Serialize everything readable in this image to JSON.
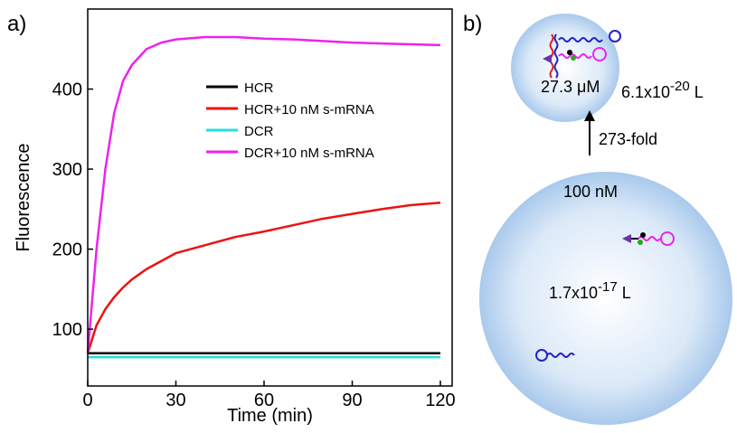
{
  "panel_labels": [
    "a)",
    "b)"
  ],
  "chart_data": {
    "type": "line",
    "xlabel": "Time (min)",
    "ylabel": "Fluorescence",
    "x": [
      0,
      3,
      6,
      9,
      12,
      15,
      20,
      25,
      30,
      40,
      50,
      60,
      70,
      80,
      90,
      100,
      110,
      120
    ],
    "series": [
      {
        "name": "HCR",
        "color": "#000000",
        "values": [
          70,
          70,
          70,
          70,
          70,
          70,
          70,
          70,
          70,
          70,
          70,
          70,
          70,
          70,
          70,
          70,
          70,
          70
        ]
      },
      {
        "name": "HCR+10 nM s-mRNA",
        "color": "#ee1111",
        "values": [
          70,
          105,
          125,
          140,
          152,
          162,
          175,
          185,
          195,
          205,
          215,
          222,
          230,
          238,
          244,
          250,
          255,
          258
        ]
      },
      {
        "name": "DCR",
        "color": "#22e0e0",
        "values": [
          65,
          65,
          65,
          65,
          65,
          65,
          65,
          65,
          65,
          65,
          65,
          65,
          65,
          65,
          65,
          65,
          65,
          65
        ]
      },
      {
        "name": "DCR+10 nM s-mRNA",
        "color": "#ee22ee",
        "values": [
          70,
          200,
          300,
          370,
          410,
          430,
          450,
          458,
          462,
          465,
          465,
          463,
          462,
          460,
          458,
          457,
          456,
          455
        ]
      }
    ],
    "xlim": [
      0,
      124
    ],
    "ylim": [
      29,
      500
    ],
    "xticks": [
      0,
      30,
      60,
      90,
      120
    ],
    "yticks": [
      100,
      200,
      300,
      400
    ]
  },
  "diagram": {
    "small": {
      "concentration": "27.3 μM",
      "volume": {
        "base": "6.1x10",
        "exp": "-20",
        "unit": " L"
      }
    },
    "arrow": "273-fold",
    "large": {
      "concentration": "100 nM",
      "volume": {
        "base": "1.7x10",
        "exp": "-17",
        "unit": " L"
      }
    }
  }
}
